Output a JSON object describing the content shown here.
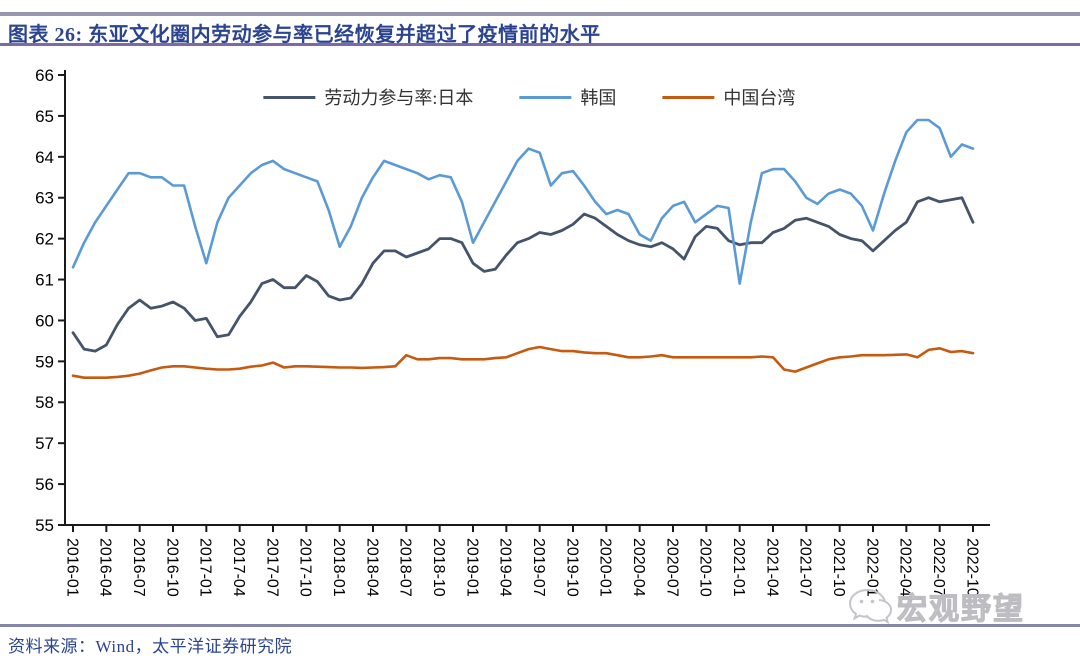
{
  "header": {
    "title": "图表 26:  东亚文化圈内劳动参与率已经恢复并超过了疫情前的水平"
  },
  "footer": {
    "source": "资料来源：Wind，太平洋证券研究院"
  },
  "watermark": {
    "text": "宏观野望",
    "icon": "wechat-bubbles"
  },
  "chart_data": {
    "type": "line",
    "title": "",
    "xlabel": "",
    "ylabel": "",
    "ylim": [
      55,
      66
    ],
    "grid": false,
    "legend_position": "top-center",
    "y_ticks": [
      55,
      56,
      57,
      58,
      59,
      60,
      61,
      62,
      63,
      64,
      65,
      66
    ],
    "x_tick_labels": [
      "2016-01",
      "2016-04",
      "2016-07",
      "2016-10",
      "2017-01",
      "2017-04",
      "2017-07",
      "2017-10",
      "2018-01",
      "2018-04",
      "2018-07",
      "2018-10",
      "2019-01",
      "2019-04",
      "2019-07",
      "2019-10",
      "2020-01",
      "2020-04",
      "2020-07",
      "2020-10",
      "2021-01",
      "2021-04",
      "2021-07",
      "2021-10",
      "2022-01",
      "2022-04",
      "2022-07",
      "2022-10"
    ],
    "x_tick_month_step": 3,
    "x_range_months": [
      "2016-01",
      "2022-10"
    ],
    "series": [
      {
        "name": "劳动力参与率:日本",
        "color": "#44546a",
        "values": [
          59.7,
          59.3,
          59.25,
          59.4,
          59.9,
          60.3,
          60.5,
          60.3,
          60.35,
          60.45,
          60.3,
          60.0,
          60.05,
          59.6,
          59.65,
          60.1,
          60.45,
          60.9,
          61.0,
          60.8,
          60.8,
          61.1,
          60.95,
          60.6,
          60.5,
          60.55,
          60.9,
          61.4,
          61.7,
          61.7,
          61.55,
          61.65,
          61.75,
          62.0,
          62.0,
          61.9,
          61.4,
          61.2,
          61.25,
          61.6,
          61.9,
          62.0,
          62.15,
          62.1,
          62.2,
          62.35,
          62.6,
          62.5,
          62.3,
          62.1,
          61.95,
          61.85,
          61.8,
          61.9,
          61.75,
          61.5,
          62.05,
          62.3,
          62.25,
          61.95,
          61.85,
          61.9,
          61.9,
          62.15,
          62.25,
          62.45,
          62.5,
          62.4,
          62.3,
          62.1,
          62.0,
          61.95,
          61.7,
          61.95,
          62.2,
          62.4,
          62.9,
          63.0,
          62.9,
          62.95,
          63.0,
          62.4
        ]
      },
      {
        "name": "韩国",
        "color": "#5b9bd5",
        "values": [
          61.3,
          61.9,
          62.4,
          62.8,
          63.2,
          63.6,
          63.6,
          63.5,
          63.5,
          63.3,
          63.3,
          62.3,
          61.4,
          62.4,
          63.0,
          63.3,
          63.6,
          63.8,
          63.9,
          63.7,
          63.6,
          63.5,
          63.4,
          62.7,
          61.8,
          62.3,
          63.0,
          63.5,
          63.9,
          63.8,
          63.7,
          63.6,
          63.45,
          63.55,
          63.5,
          62.9,
          61.9,
          62.4,
          62.9,
          63.4,
          63.9,
          64.2,
          64.1,
          63.3,
          63.6,
          63.65,
          63.3,
          62.9,
          62.6,
          62.7,
          62.6,
          62.1,
          61.95,
          62.5,
          62.8,
          62.9,
          62.4,
          62.6,
          62.8,
          62.75,
          60.9,
          62.4,
          63.6,
          63.7,
          63.7,
          63.4,
          63.0,
          62.85,
          63.1,
          63.2,
          63.1,
          62.8,
          62.2,
          63.1,
          63.9,
          64.6,
          64.9,
          64.9,
          64.7,
          64.0,
          64.3,
          64.2
        ]
      },
      {
        "name": "中国台湾",
        "color": "#c55a11",
        "values": [
          58.65,
          58.6,
          58.6,
          58.6,
          58.62,
          58.65,
          58.7,
          58.78,
          58.85,
          58.88,
          58.88,
          58.85,
          58.82,
          58.8,
          58.8,
          58.82,
          58.87,
          58.9,
          58.97,
          58.85,
          58.88,
          58.88,
          58.87,
          58.86,
          58.85,
          58.85,
          58.84,
          58.85,
          58.86,
          58.88,
          59.15,
          59.05,
          59.05,
          59.08,
          59.08,
          59.05,
          59.05,
          59.05,
          59.08,
          59.1,
          59.2,
          59.3,
          59.35,
          59.3,
          59.25,
          59.25,
          59.22,
          59.2,
          59.2,
          59.15,
          59.1,
          59.1,
          59.12,
          59.15,
          59.1,
          59.1,
          59.1,
          59.1,
          59.1,
          59.1,
          59.1,
          59.1,
          59.12,
          59.1,
          58.8,
          58.75,
          58.85,
          58.95,
          59.05,
          59.1,
          59.12,
          59.15,
          59.15,
          59.15,
          59.16,
          59.17,
          59.1,
          59.28,
          59.32,
          59.23,
          59.25,
          59.2
        ]
      }
    ]
  }
}
